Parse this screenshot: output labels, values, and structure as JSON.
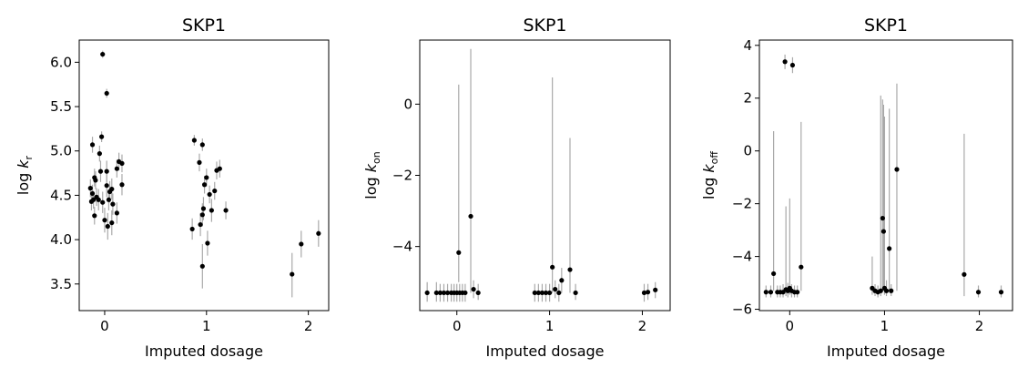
{
  "chart_data": [
    {
      "type": "scatter",
      "title": "SKP1",
      "xlabel": "Imputed dosage",
      "ylabel_base": "log",
      "ylabel_symbol": "k",
      "ylabel_subscript": "r",
      "xlim": [
        -0.25,
        2.2
      ],
      "ylim": [
        3.2,
        6.25
      ],
      "xticks": [
        0,
        1,
        2
      ],
      "xtick_labels": [
        "0",
        "1",
        "2"
      ],
      "yticks": [
        3.5,
        4.0,
        4.5,
        5.0,
        5.5,
        6.0
      ],
      "ytick_labels": [
        "3.5",
        "4.0",
        "4.5",
        "5.0",
        "5.5",
        "6.0"
      ],
      "point_color": "#000000",
      "errorbar_color": "#a9a9a9",
      "points": [
        {
          "x": -0.02,
          "y": 6.09,
          "lo": 6.05,
          "hi": 6.13
        },
        {
          "x": 0.02,
          "y": 5.65,
          "lo": 5.6,
          "hi": 5.7
        },
        {
          "x": -0.03,
          "y": 5.16,
          "lo": 5.1,
          "hi": 5.22
        },
        {
          "x": -0.12,
          "y": 5.07,
          "lo": 4.98,
          "hi": 5.16
        },
        {
          "x": -0.05,
          "y": 4.97,
          "lo": 4.88,
          "hi": 5.06
        },
        {
          "x": 0.14,
          "y": 4.88,
          "lo": 4.78,
          "hi": 4.98
        },
        {
          "x": 0.17,
          "y": 4.86,
          "lo": 4.76,
          "hi": 4.96
        },
        {
          "x": 0.12,
          "y": 4.8,
          "lo": 4.7,
          "hi": 4.9
        },
        {
          "x": -0.04,
          "y": 4.77,
          "lo": 4.65,
          "hi": 4.89
        },
        {
          "x": 0.02,
          "y": 4.77,
          "lo": 4.65,
          "hi": 4.89
        },
        {
          "x": -0.1,
          "y": 4.7,
          "lo": 4.6,
          "hi": 4.8
        },
        {
          "x": -0.09,
          "y": 4.67,
          "lo": 4.57,
          "hi": 4.77
        },
        {
          "x": 0.17,
          "y": 4.62,
          "lo": 4.5,
          "hi": 4.74
        },
        {
          "x": 0.02,
          "y": 4.61,
          "lo": 4.48,
          "hi": 4.74
        },
        {
          "x": -0.14,
          "y": 4.58,
          "lo": 4.48,
          "hi": 4.68
        },
        {
          "x": 0.07,
          "y": 4.57,
          "lo": 4.45,
          "hi": 4.69
        },
        {
          "x": 0.05,
          "y": 4.54,
          "lo": 4.42,
          "hi": 4.66
        },
        {
          "x": -0.12,
          "y": 4.52,
          "lo": 4.42,
          "hi": 4.62
        },
        {
          "x": -0.08,
          "y": 4.48,
          "lo": 4.38,
          "hi": 4.58
        },
        {
          "x": -0.11,
          "y": 4.45,
          "lo": 4.35,
          "hi": 4.55
        },
        {
          "x": -0.06,
          "y": 4.45,
          "lo": 4.33,
          "hi": 4.57
        },
        {
          "x": 0.04,
          "y": 4.45,
          "lo": 4.33,
          "hi": 4.57
        },
        {
          "x": -0.13,
          "y": 4.43,
          "lo": 4.33,
          "hi": 4.53
        },
        {
          "x": -0.02,
          "y": 4.42,
          "lo": 4.3,
          "hi": 4.54
        },
        {
          "x": 0.08,
          "y": 4.4,
          "lo": 4.28,
          "hi": 4.52
        },
        {
          "x": 0.12,
          "y": 4.3,
          "lo": 4.18,
          "hi": 4.42
        },
        {
          "x": -0.1,
          "y": 4.27,
          "lo": 4.17,
          "hi": 4.37
        },
        {
          "x": 0.0,
          "y": 4.22,
          "lo": 4.08,
          "hi": 4.36
        },
        {
          "x": 0.07,
          "y": 4.19,
          "lo": 4.05,
          "hi": 4.33
        },
        {
          "x": 0.03,
          "y": 4.15,
          "lo": 4.0,
          "hi": 4.3
        },
        {
          "x": 0.88,
          "y": 5.12,
          "lo": 5.06,
          "hi": 5.18
        },
        {
          "x": 0.96,
          "y": 5.07,
          "lo": 5.0,
          "hi": 5.14
        },
        {
          "x": 0.93,
          "y": 4.87,
          "lo": 4.77,
          "hi": 4.97
        },
        {
          "x": 1.13,
          "y": 4.8,
          "lo": 4.7,
          "hi": 4.9
        },
        {
          "x": 1.1,
          "y": 4.78,
          "lo": 4.68,
          "hi": 4.88
        },
        {
          "x": 1.0,
          "y": 4.7,
          "lo": 4.6,
          "hi": 4.8
        },
        {
          "x": 0.98,
          "y": 4.62,
          "lo": 4.52,
          "hi": 4.72
        },
        {
          "x": 1.08,
          "y": 4.55,
          "lo": 4.45,
          "hi": 4.65
        },
        {
          "x": 1.03,
          "y": 4.51,
          "lo": 4.41,
          "hi": 4.61
        },
        {
          "x": 0.97,
          "y": 4.35,
          "lo": 4.22,
          "hi": 4.48
        },
        {
          "x": 1.05,
          "y": 4.33,
          "lo": 4.2,
          "hi": 4.46
        },
        {
          "x": 1.19,
          "y": 4.33,
          "lo": 4.23,
          "hi": 4.43
        },
        {
          "x": 0.96,
          "y": 4.28,
          "lo": 4.15,
          "hi": 4.41
        },
        {
          "x": 0.94,
          "y": 4.17,
          "lo": 4.04,
          "hi": 4.3
        },
        {
          "x": 0.86,
          "y": 4.12,
          "lo": 4.0,
          "hi": 4.24
        },
        {
          "x": 1.01,
          "y": 3.96,
          "lo": 3.82,
          "hi": 4.1
        },
        {
          "x": 0.96,
          "y": 3.7,
          "lo": 3.45,
          "hi": 3.95
        },
        {
          "x": 2.1,
          "y": 4.07,
          "lo": 3.92,
          "hi": 4.22
        },
        {
          "x": 1.93,
          "y": 3.95,
          "lo": 3.8,
          "hi": 4.1
        },
        {
          "x": 1.84,
          "y": 3.61,
          "lo": 3.35,
          "hi": 3.85
        }
      ]
    },
    {
      "type": "scatter",
      "title": "SKP1",
      "xlabel": "Imputed dosage",
      "ylabel_base": "log",
      "ylabel_symbol": "k",
      "ylabel_subscript": "on",
      "xlim": [
        -0.4,
        2.3
      ],
      "ylim": [
        -5.8,
        1.8
      ],
      "xticks": [
        0,
        1,
        2
      ],
      "xtick_labels": [
        "0",
        "1",
        "2"
      ],
      "yticks": [
        -4,
        -2,
        0
      ],
      "ytick_labels": [
        "−4",
        "−2",
        "0"
      ],
      "point_color": "#000000",
      "errorbar_color": "#a9a9a9",
      "points": [
        {
          "x": -0.32,
          "y": -5.3,
          "lo": -5.55,
          "hi": -5.0
        },
        {
          "x": -0.22,
          "y": -5.3,
          "lo": -5.55,
          "hi": -5.0
        },
        {
          "x": -0.18,
          "y": -5.3,
          "lo": -5.55,
          "hi": -5.05
        },
        {
          "x": -0.14,
          "y": -5.3,
          "lo": -5.55,
          "hi": -5.05
        },
        {
          "x": -0.1,
          "y": -5.3,
          "lo": -5.55,
          "hi": -5.05
        },
        {
          "x": -0.06,
          "y": -5.3,
          "lo": -5.55,
          "hi": -5.05
        },
        {
          "x": -0.03,
          "y": -5.3,
          "lo": -5.55,
          "hi": -5.05
        },
        {
          "x": 0.0,
          "y": -5.3,
          "lo": -5.55,
          "hi": -5.05
        },
        {
          "x": 0.03,
          "y": -5.3,
          "lo": -5.55,
          "hi": -5.05
        },
        {
          "x": 0.06,
          "y": -5.3,
          "lo": -5.55,
          "hi": -5.05
        },
        {
          "x": 0.09,
          "y": -5.3,
          "lo": -5.55,
          "hi": -5.05
        },
        {
          "x": 0.02,
          "y": -4.17,
          "lo": -5.0,
          "hi": 0.55
        },
        {
          "x": 0.15,
          "y": -3.15,
          "lo": -5.3,
          "hi": 1.55
        },
        {
          "x": 0.18,
          "y": -5.2,
          "lo": -5.45,
          "hi": -4.95
        },
        {
          "x": 0.23,
          "y": -5.3,
          "lo": -5.5,
          "hi": -5.05
        },
        {
          "x": 0.84,
          "y": -5.3,
          "lo": -5.55,
          "hi": -5.05
        },
        {
          "x": 0.88,
          "y": -5.3,
          "lo": -5.55,
          "hi": -5.05
        },
        {
          "x": 0.92,
          "y": -5.3,
          "lo": -5.55,
          "hi": -5.05
        },
        {
          "x": 0.96,
          "y": -5.3,
          "lo": -5.55,
          "hi": -5.05
        },
        {
          "x": 1.0,
          "y": -5.3,
          "lo": -5.55,
          "hi": -5.05
        },
        {
          "x": 1.03,
          "y": -4.58,
          "lo": -5.3,
          "hi": 0.75
        },
        {
          "x": 1.06,
          "y": -5.2,
          "lo": -5.45,
          "hi": -4.95
        },
        {
          "x": 1.1,
          "y": -5.3,
          "lo": -5.55,
          "hi": -5.05
        },
        {
          "x": 1.13,
          "y": -4.95,
          "lo": -5.3,
          "hi": -4.6
        },
        {
          "x": 1.22,
          "y": -4.65,
          "lo": -5.3,
          "hi": -0.95
        },
        {
          "x": 1.28,
          "y": -5.3,
          "lo": -5.5,
          "hi": -5.05
        },
        {
          "x": 2.02,
          "y": -5.3,
          "lo": -5.55,
          "hi": -5.05
        },
        {
          "x": 2.06,
          "y": -5.28,
          "lo": -5.5,
          "hi": -5.05
        },
        {
          "x": 2.14,
          "y": -5.22,
          "lo": -5.45,
          "hi": -5.0
        }
      ]
    },
    {
      "type": "scatter",
      "title": "SKP1",
      "xlabel": "Imputed dosage",
      "ylabel_base": "log",
      "ylabel_symbol": "k",
      "ylabel_subscript": "off",
      "xlim": [
        -0.32,
        2.35
      ],
      "ylim": [
        -6.05,
        4.2
      ],
      "xticks": [
        0,
        1,
        2
      ],
      "xtick_labels": [
        "0",
        "1",
        "2"
      ],
      "yticks": [
        -6,
        -4,
        -2,
        0,
        2,
        4
      ],
      "ytick_labels": [
        "−6",
        "−4",
        "−2",
        "0",
        "2",
        "4"
      ],
      "point_color": "#000000",
      "errorbar_color": "#a9a9a9",
      "points": [
        {
          "x": -0.05,
          "y": 3.38,
          "lo": 3.1,
          "hi": 3.65
        },
        {
          "x": 0.03,
          "y": 3.25,
          "lo": 2.95,
          "hi": 3.55
        },
        {
          "x": -0.25,
          "y": -5.35,
          "lo": -5.55,
          "hi": -5.1
        },
        {
          "x": -0.2,
          "y": -5.35,
          "lo": -5.55,
          "hi": -5.1
        },
        {
          "x": -0.17,
          "y": -4.65,
          "lo": -5.3,
          "hi": 0.75
        },
        {
          "x": -0.13,
          "y": -5.35,
          "lo": -5.55,
          "hi": -5.1
        },
        {
          "x": -0.1,
          "y": -5.35,
          "lo": -5.55,
          "hi": -5.1
        },
        {
          "x": -0.07,
          "y": -5.35,
          "lo": -5.55,
          "hi": -5.05
        },
        {
          "x": -0.04,
          "y": -5.25,
          "lo": -5.5,
          "hi": -2.1
        },
        {
          "x": -0.02,
          "y": -5.3,
          "lo": -5.55,
          "hi": -5.0
        },
        {
          "x": 0.0,
          "y": -5.2,
          "lo": -5.45,
          "hi": -1.8
        },
        {
          "x": 0.02,
          "y": -5.3,
          "lo": -5.55,
          "hi": -5.05
        },
        {
          "x": 0.05,
          "y": -5.35,
          "lo": -5.55,
          "hi": -5.1
        },
        {
          "x": 0.08,
          "y": -5.35,
          "lo": -5.55,
          "hi": -5.1
        },
        {
          "x": 0.12,
          "y": -4.4,
          "lo": -5.3,
          "hi": 1.1
        },
        {
          "x": 0.87,
          "y": -5.2,
          "lo": -5.45,
          "hi": -4.0
        },
        {
          "x": 0.9,
          "y": -5.3,
          "lo": -5.5,
          "hi": -5.05
        },
        {
          "x": 0.93,
          "y": -5.35,
          "lo": -5.55,
          "hi": -5.1
        },
        {
          "x": 0.96,
          "y": -5.3,
          "lo": -5.5,
          "hi": 2.1
        },
        {
          "x": 0.98,
          "y": -2.55,
          "lo": -5.3,
          "hi": 1.95
        },
        {
          "x": 0.99,
          "y": -3.05,
          "lo": -5.3,
          "hi": 1.75
        },
        {
          "x": 1.0,
          "y": -5.2,
          "lo": -5.45,
          "hi": 1.3
        },
        {
          "x": 1.02,
          "y": -5.3,
          "lo": -5.5,
          "hi": -4.9
        },
        {
          "x": 1.05,
          "y": -3.7,
          "lo": -5.3,
          "hi": 1.6
        },
        {
          "x": 1.07,
          "y": -5.3,
          "lo": -5.5,
          "hi": -5.05
        },
        {
          "x": 1.13,
          "y": -0.7,
          "lo": -5.3,
          "hi": 2.55
        },
        {
          "x": 1.84,
          "y": -4.68,
          "lo": -5.5,
          "hi": 0.65
        },
        {
          "x": 1.99,
          "y": -5.35,
          "lo": -5.55,
          "hi": -5.1
        },
        {
          "x": 2.23,
          "y": -5.35,
          "lo": -5.55,
          "hi": -5.1
        }
      ]
    }
  ]
}
